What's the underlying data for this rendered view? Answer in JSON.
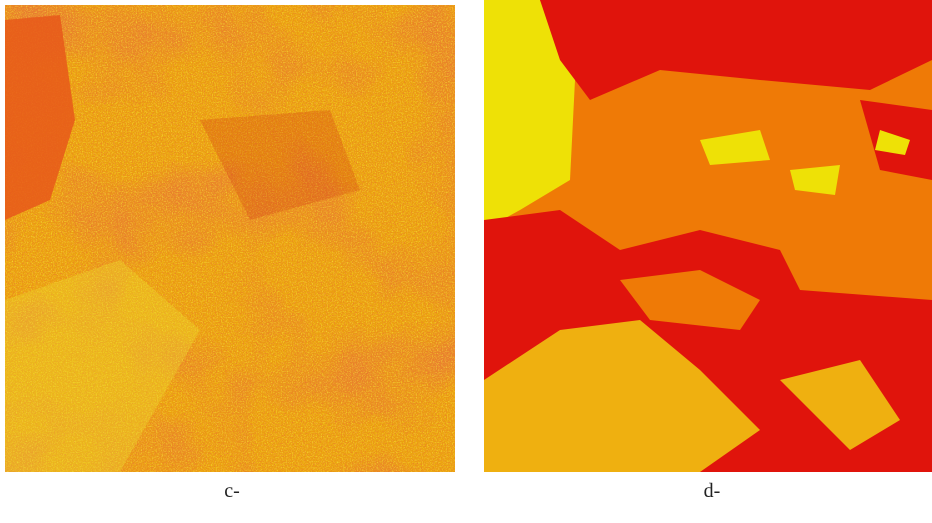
{
  "panels": [
    {
      "label": "c-"
    },
    {
      "label": "d-"
    }
  ]
}
